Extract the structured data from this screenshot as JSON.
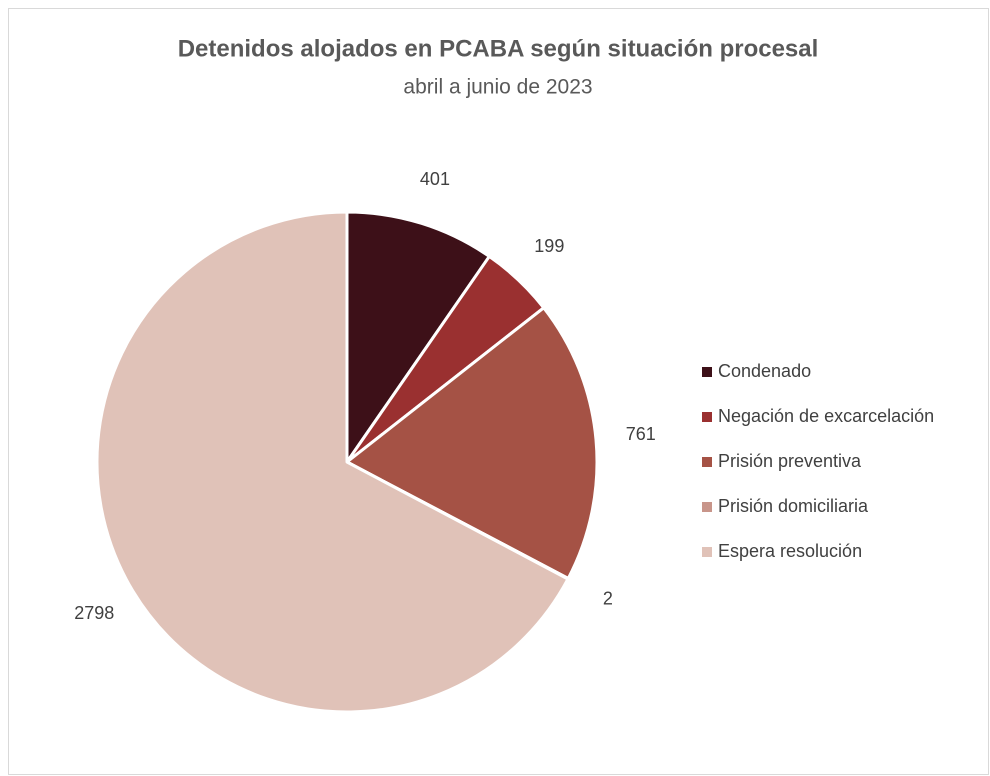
{
  "chart_data": {
    "type": "pie",
    "title": "Detenidos alojados en PCABA según situación procesal",
    "subtitle": "abril a junio de 2023",
    "categories": [
      "Condenado",
      "Negación de excarcelación",
      "Prisión preventiva",
      "Prisión domiciliaria",
      "Espera resolución"
    ],
    "values": [
      401,
      199,
      761,
      2,
      2798
    ],
    "colors": [
      "#3d1018",
      "#9a3030",
      "#a55245",
      "#c8958a",
      "#e0c2b8"
    ],
    "legend": "right"
  }
}
